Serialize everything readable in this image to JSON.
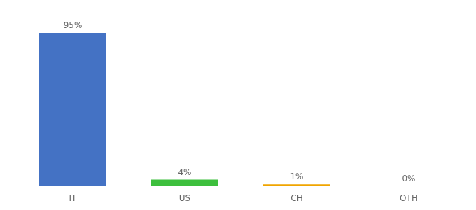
{
  "chart_data": {
    "type": "bar",
    "categories": [
      "IT",
      "US",
      "CH",
      "OTH"
    ],
    "values": [
      95,
      4,
      1,
      0
    ],
    "value_labels": [
      "95%",
      "4%",
      "1%",
      "0%"
    ],
    "colors": [
      "#4472c4",
      "#3dbf3d",
      "#f0a500",
      "#f0a500"
    ],
    "ylim": [
      0,
      105
    ],
    "grid": false,
    "tick_labels": "x",
    "data_labels": true
  }
}
